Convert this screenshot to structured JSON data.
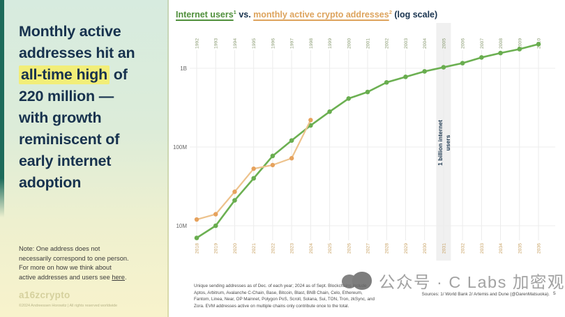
{
  "slide": {
    "page_number": "5"
  },
  "sidebar": {
    "headline_lines": [
      [
        {
          "t": "Monthly active"
        }
      ],
      [
        {
          "t": "addresses hit an"
        }
      ],
      [
        {
          "t": "all-time high",
          "s": "hl"
        },
        {
          "t": " of"
        }
      ],
      [
        {
          "t": "220 million —"
        }
      ],
      [
        {
          "t": "with growth"
        }
      ],
      [
        {
          "t": "reminiscent of"
        }
      ],
      [
        {
          "t": "early internet"
        }
      ],
      [
        {
          "t": "adoption"
        }
      ]
    ],
    "note_lines": [
      [
        {
          "t": "Note: One address does not"
        }
      ],
      [
        {
          "t": "necessarily correspond to one person."
        }
      ],
      [
        {
          "t": "For more on how we think about"
        }
      ],
      [
        {
          "t": "active addresses and users see "
        },
        {
          "t": "here",
          "s": "link"
        },
        {
          "t": "."
        }
      ]
    ],
    "logo_text": "a16zcrypto",
    "copyright": "©2024 Andreessen Horowitz | All rights reserved worldwide"
  },
  "chart": {
    "title_segments": [
      {
        "t": "Internet users",
        "s": "green-u"
      },
      {
        "t": "1",
        "s": "green sup"
      },
      {
        "t": " vs. ",
        "s": "navy"
      },
      {
        "t": "monthly active crypto addresses",
        "s": "orange-u"
      },
      {
        "t": "2",
        "s": "orange sup"
      },
      {
        "t": " (log scale)",
        "s": "navy"
      }
    ]
  },
  "chart_data": {
    "type": "line",
    "log_scale": true,
    "title": "Internet users vs. monthly active crypto addresses (log scale)",
    "y_ticks": [
      {
        "label": "1B",
        "millions": 1000
      },
      {
        "label": "100M",
        "millions": 100
      },
      {
        "label": "10M",
        "millions": 10
      }
    ],
    "top_axis_years": [
      "1992",
      "1993",
      "1994",
      "1995",
      "1996",
      "1997",
      "1998",
      "1999",
      "2000",
      "2001",
      "2002",
      "2003",
      "2004",
      "2005",
      "2006",
      "2007",
      "2008",
      "2009",
      "2010"
    ],
    "bottom_axis_years": [
      "2018",
      "2019",
      "2020",
      "2021",
      "2022",
      "2023",
      "2024",
      "2025",
      "2026",
      "2027",
      "2028",
      "2029",
      "2030",
      "2031",
      "2032",
      "2033",
      "2034",
      "2035",
      "2036"
    ],
    "series": [
      {
        "name": "Internet users",
        "axis": "top",
        "color": "#6cb052",
        "marker_color": "#69ad4f",
        "values_millions": [
          7,
          10,
          21,
          40,
          77,
          121,
          188,
          281,
          413,
          500,
          662,
          778,
          913,
          1030,
          1162,
          1373,
          1562,
          1752,
          2023
        ]
      },
      {
        "name": "Monthly active crypto addresses",
        "axis": "bottom",
        "color": "#edc28c",
        "marker_color": "#e6a25d",
        "values_millions": [
          12,
          14,
          27,
          53,
          59,
          72,
          220
        ]
      }
    ],
    "annotation": {
      "lines": [
        "1 billion internet",
        "users"
      ],
      "highlight_year_top": "2005",
      "highlight_year_bottom": "2031"
    },
    "grid": true,
    "legend_position": "none"
  },
  "footnote": "Unique sending addresses as of Dec. of each year; 2024 as of Sept. Blockchains include Aptos, Arbitrum, Avalanche C-Chain, Base, Bitcoin, Blast, BNB Chain, Celo, Ethereum, Fantom, Linea, Near, OP Mainnet, Polygon PoS, Scroll, Solana, Sui, TON, Tron, zkSync, and Zora. EVM addresses active on multiple chains only contribute once to the total.",
  "sources": "Sources: 1/ World Bank 2/ Artemis and Dune (@DarenMatsuoka).",
  "watermark_text": "公众号 · C Labs 加密观察",
  "colors": {
    "navy": "#17324e",
    "highlight_yellow": "#f2ee78",
    "internet_green": "#6cb052",
    "crypto_orange": "#e6a25d",
    "top_axis_label": "#8a9b72",
    "bottom_axis_label": "#c8a264",
    "band_gray": "#e3e3e3",
    "accent_teal": "#1d6b5a"
  }
}
